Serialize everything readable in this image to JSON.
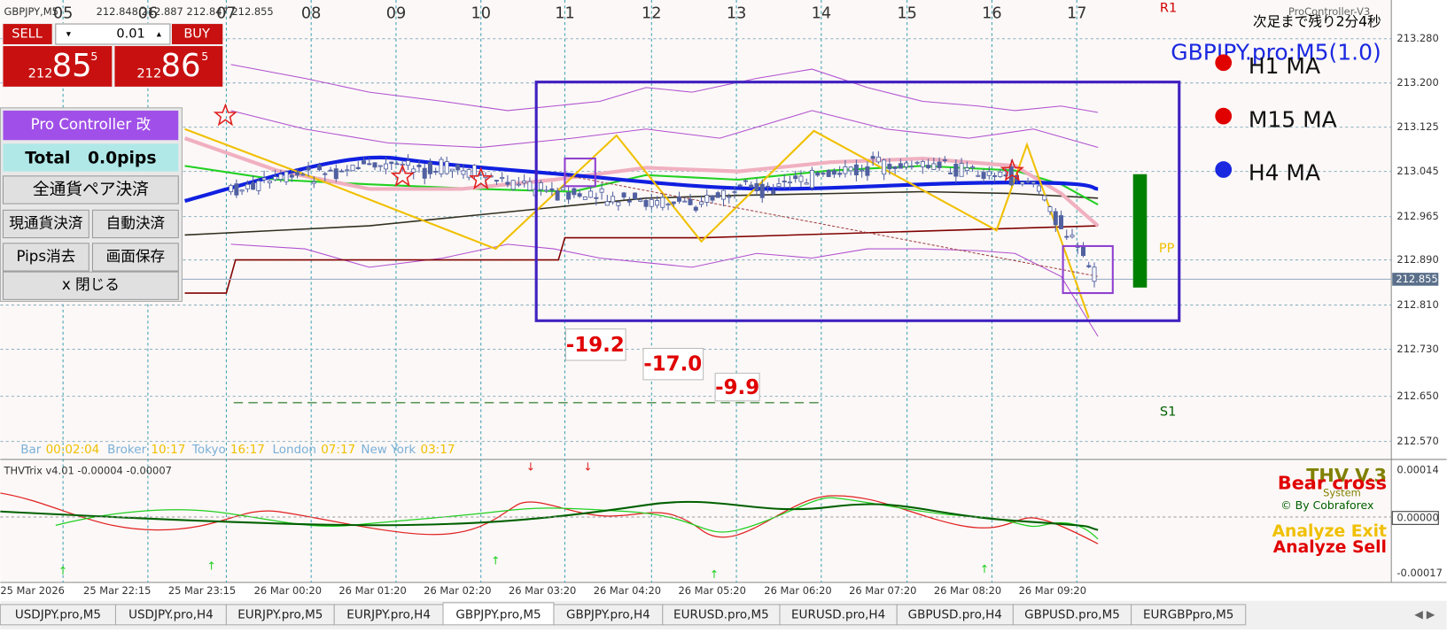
{
  "header": {
    "symbol": "GBPJPY,M5",
    "prices": "212.848 212.887 212.847 212.855",
    "indicator": "ProController-V3"
  },
  "day_labels": [
    "05",
    "06",
    "07",
    "08",
    "09",
    "10",
    "11",
    "12",
    "13",
    "14",
    "15",
    "16",
    "17"
  ],
  "price_axis": [
    "213.280",
    "213.200",
    "213.125",
    "213.045",
    "212.965",
    "212.890",
    "212.810",
    "212.730",
    "212.650",
    "212.570"
  ],
  "current_price": "212.855",
  "trade_panel": {
    "sell": "SELL",
    "buy": "BUY",
    "lot": "0.01",
    "sell_price": {
      "prefix": "212",
      "big": "85",
      "sup": "5"
    },
    "buy_price": {
      "prefix": "212",
      "big": "86",
      "sup": "5"
    }
  },
  "controller": {
    "title": "Pro Controller 改",
    "total": "Total   0.0pips",
    "buttons": [
      "全通貨ペア決済",
      "現通貨決済",
      "自動決済",
      "Pips消去",
      "画面保存",
      "x 閉じる"
    ]
  },
  "right_info": {
    "countdown": "次足まで残り2分4秒",
    "symbol_tf": "GBPJPY.pro:M5(1.0)",
    "ma": [
      "H1 MA",
      "M15 MA",
      "H4 MA"
    ]
  },
  "levels": {
    "r1": "R1",
    "pp": "PP",
    "s1": "S1"
  },
  "pips_labels": [
    "-19.2",
    "-17.0",
    "-9.9"
  ],
  "status_bar": [
    {
      "label": "Bar",
      "value": "00:02:04"
    },
    {
      "label": "Broker",
      "value": "10:17"
    },
    {
      "label": "Tokyo",
      "value": "16:17"
    },
    {
      "label": "London",
      "value": "07:17"
    },
    {
      "label": "New York",
      "value": "03:17"
    }
  ],
  "sub_window": {
    "title": "THVTrix v4.01 -0.00004 -0.00007",
    "ticks": [
      "0.00014",
      "0.00000",
      "-0.00017"
    ],
    "brand": "THV V.3",
    "system": "System",
    "by": "© By Cobraforex",
    "bear_cross": "Bear cross",
    "analyze_exit": "Analyze Exit",
    "analyze_sell": "Analyze Sell"
  },
  "time_axis": [
    "25 Mar 2026",
    "25 Mar 22:15",
    "25 Mar 23:15",
    "26 Mar 00:20",
    "26 Mar 01:20",
    "26 Mar 02:20",
    "26 Mar 03:20",
    "26 Mar 04:20",
    "26 Mar 05:20",
    "26 Mar 06:20",
    "26 Mar 07:20",
    "26 Mar 08:20",
    "26 Mar 09:20"
  ],
  "tabs": [
    "USDJPY.pro,M5",
    "USDJPY.pro,H4",
    "EURJPY.pro,M5",
    "EURJPY.pro,H4",
    "GBPJPY.pro,M5",
    "GBPJPY.pro,H4",
    "EURUSD.pro,M5",
    "EURUSD.pro,H4",
    "GBPUSD.pro,H4",
    "GBPUSD.pro,M5",
    "EURGBPpro,M5"
  ]
}
